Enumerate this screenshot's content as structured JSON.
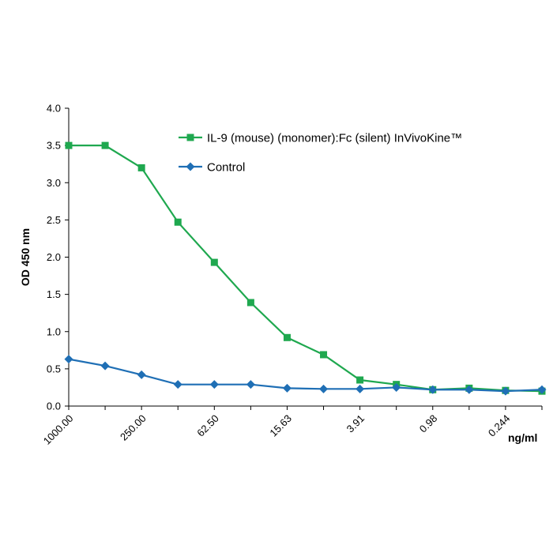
{
  "chart_data": {
    "type": "line",
    "ylabel": "OD  450 nm",
    "xlabel": "ng/ml",
    "ylim": [
      0,
      4.0
    ],
    "y_ticks": [
      "0.0",
      "0.5",
      "1.0",
      "1.5",
      "2.0",
      "2.5",
      "3.0",
      "3.5",
      "4.0"
    ],
    "x_tick_labels": [
      "1000.00",
      "250.00",
      "62.50",
      "15.63",
      "3.91",
      "0.98",
      "0.244"
    ],
    "x": [
      1000.0,
      500.0,
      250.0,
      125.0,
      62.5,
      31.25,
      15.63,
      7.81,
      3.91,
      1.95,
      0.98,
      0.49,
      0.244,
      0.122
    ],
    "grid": false,
    "legend_position": "top-right",
    "series": [
      {
        "name": "IL-9 (mouse) (monomer):Fc (silent) InVivoKine™",
        "color": "#1fa84f",
        "marker": "square",
        "values": [
          3.5,
          3.5,
          3.2,
          2.47,
          1.93,
          1.39,
          0.92,
          0.69,
          0.35,
          0.29,
          0.22,
          0.24,
          0.21,
          0.2
        ]
      },
      {
        "name": "Control",
        "color": "#1f6fb5",
        "marker": "diamond",
        "values": [
          0.63,
          0.54,
          0.42,
          0.29,
          0.29,
          0.29,
          0.24,
          0.23,
          0.23,
          0.25,
          0.22,
          0.22,
          0.2,
          0.22
        ]
      }
    ]
  }
}
